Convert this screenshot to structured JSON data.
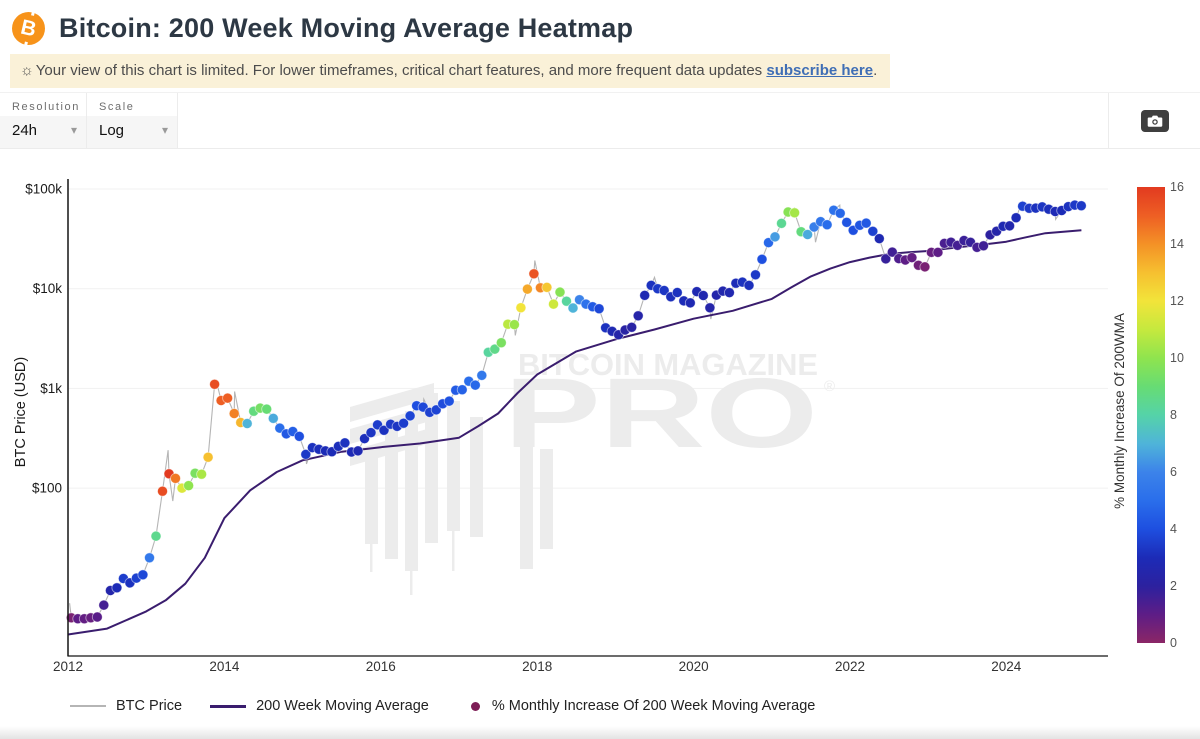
{
  "header": {
    "title": "Bitcoin: 200 Week Moving Average Heatmap"
  },
  "notice": {
    "icon": "☼",
    "text": "Your view of this chart is limited. For lower timeframes, critical chart features, and more frequent data updates ",
    "link_label": "subscribe here",
    "suffix": "."
  },
  "toolbar": {
    "resolution_label": "Resolution",
    "resolution_value": "24h",
    "scale_label": "Scale",
    "scale_value": "Log"
  },
  "watermark": {
    "line1": "BITCOIN MAGAZINE",
    "line2": "PRO",
    "reg": "®"
  },
  "legend": [
    {
      "type": "line",
      "color": "#b5b5b5",
      "label": "BTC Price"
    },
    {
      "type": "line",
      "color": "#3a1d6e",
      "label": "200 Week Moving Average"
    },
    {
      "type": "dot",
      "color": "#7d1e56",
      "label": "% Monthly Increase Of 200 Week Moving Average"
    }
  ],
  "chart_data": {
    "type": "scatter+line",
    "title": "Bitcoin: 200 Week Moving Average Heatmap",
    "ylabel": "BTC Price (USD)",
    "scale": "log",
    "grid": "horizontal-faint",
    "yticks": [
      {
        "label": "$100k",
        "value": 100000
      },
      {
        "label": "$10k",
        "value": 10000
      },
      {
        "label": "$1k",
        "value": 1000
      },
      {
        "label": "$100",
        "value": 100
      }
    ],
    "xticks": [
      2012,
      2014,
      2016,
      2018,
      2020,
      2022,
      2024
    ],
    "x_domain": [
      2012,
      2025.3
    ],
    "colorbar": {
      "label": "% Monthly Increase Of 200WMA",
      "ticks": [
        0,
        2,
        4,
        6,
        8,
        10,
        12,
        14,
        16
      ],
      "range": [
        0,
        16
      ],
      "stops": [
        [
          0,
          "#8b2666"
        ],
        [
          1,
          "#5e1d86"
        ],
        [
          2,
          "#2c219f"
        ],
        [
          3,
          "#1c2bb7"
        ],
        [
          4,
          "#1e4fe0"
        ],
        [
          5,
          "#2a6eeb"
        ],
        [
          6,
          "#3c83ea"
        ],
        [
          7,
          "#4fb4d9"
        ],
        [
          8,
          "#55d3a8"
        ],
        [
          9,
          "#67dc74"
        ],
        [
          10,
          "#8fe44e"
        ],
        [
          11,
          "#c5e93e"
        ],
        [
          12,
          "#f2e43a"
        ],
        [
          13,
          "#f6c030"
        ],
        [
          14,
          "#f49126"
        ],
        [
          15,
          "#ee5f24"
        ],
        [
          16,
          "#e23a20"
        ]
      ]
    },
    "monthly_start": 2012.0,
    "monthly_note": "each entry = [BTC price USD, % monthly increase of 200WMA], one per month from Jan 2012",
    "monthly": [
      [
        5.0,
        0.4
      ],
      [
        4.9,
        1.0
      ],
      [
        4.9,
        0.9
      ],
      [
        5.0,
        0.8
      ],
      [
        5.1,
        1.1
      ],
      [
        6.7,
        1.5
      ],
      [
        9.4,
        2.5
      ],
      [
        10.0,
        3.0
      ],
      [
        12.4,
        3.5
      ],
      [
        11.2,
        3.2
      ],
      [
        12.5,
        3.6
      ],
      [
        13.5,
        3.8
      ],
      [
        20,
        5.5
      ],
      [
        33,
        8.5
      ],
      [
        93,
        15.5
      ],
      [
        139,
        16.0
      ],
      [
        125,
        14.5
      ],
      [
        100,
        11.5
      ],
      [
        106,
        10.0
      ],
      [
        141,
        9.5
      ],
      [
        138,
        10.5
      ],
      [
        204,
        13.0
      ],
      [
        1100,
        15.5
      ],
      [
        757,
        15.0
      ],
      [
        800,
        15.0
      ],
      [
        560,
        14.3
      ],
      [
        455,
        13.2
      ],
      [
        445,
        7.0
      ],
      [
        590,
        8.8
      ],
      [
        635,
        9.4
      ],
      [
        620,
        9.0
      ],
      [
        500,
        6.8
      ],
      [
        400,
        5.0
      ],
      [
        350,
        4.3
      ],
      [
        370,
        4.5
      ],
      [
        330,
        4.0
      ],
      [
        218,
        3.4
      ],
      [
        255,
        3.2
      ],
      [
        245,
        3.1
      ],
      [
        236,
        3.0
      ],
      [
        232,
        3.0
      ],
      [
        262,
        3.1
      ],
      [
        284,
        3.2
      ],
      [
        230,
        2.9
      ],
      [
        236,
        2.8
      ],
      [
        314,
        3.1
      ],
      [
        360,
        3.3
      ],
      [
        430,
        3.5
      ],
      [
        380,
        3.2
      ],
      [
        437,
        3.4
      ],
      [
        416,
        3.3
      ],
      [
        448,
        3.5
      ],
      [
        530,
        3.7
      ],
      [
        670,
        4.0
      ],
      [
        650,
        3.8
      ],
      [
        575,
        3.6
      ],
      [
        608,
        3.7
      ],
      [
        700,
        3.9
      ],
      [
        745,
        4.1
      ],
      [
        960,
        4.4
      ],
      [
        970,
        4.6
      ],
      [
        1180,
        5.0
      ],
      [
        1080,
        4.8
      ],
      [
        1350,
        5.5
      ],
      [
        2300,
        8.2
      ],
      [
        2480,
        8.6
      ],
      [
        2870,
        9.5
      ],
      [
        4400,
        10.8
      ],
      [
        4360,
        10.2
      ],
      [
        6450,
        12.0
      ],
      [
        9900,
        13.5
      ],
      [
        14100,
        15.3
      ],
      [
        10200,
        14.2
      ],
      [
        10300,
        12.8
      ],
      [
        7000,
        11.2
      ],
      [
        9240,
        9.8
      ],
      [
        7500,
        8.2
      ],
      [
        6400,
        7.0
      ],
      [
        7750,
        6.0
      ],
      [
        7000,
        5.2
      ],
      [
        6600,
        4.4
      ],
      [
        6300,
        3.8
      ],
      [
        4050,
        3.2
      ],
      [
        3740,
        2.8
      ],
      [
        3460,
        2.4
      ],
      [
        3850,
        2.2
      ],
      [
        4100,
        2.2
      ],
      [
        5350,
        2.4
      ],
      [
        8560,
        2.8
      ],
      [
        10800,
        3.2
      ],
      [
        10000,
        3.4
      ],
      [
        9600,
        3.3
      ],
      [
        8300,
        3.1
      ],
      [
        9150,
        3.2
      ],
      [
        7550,
        3.0
      ],
      [
        7200,
        2.8
      ],
      [
        9350,
        2.8
      ],
      [
        8550,
        2.7
      ],
      [
        6440,
        2.4
      ],
      [
        8630,
        2.5
      ],
      [
        9450,
        2.6
      ],
      [
        9140,
        2.7
      ],
      [
        11350,
        3.0
      ],
      [
        11650,
        3.2
      ],
      [
        10780,
        3.1
      ],
      [
        13800,
        3.4
      ],
      [
        19700,
        4.0
      ],
      [
        29000,
        4.8
      ],
      [
        33100,
        6.5
      ],
      [
        45200,
        8.4
      ],
      [
        58800,
        9.8
      ],
      [
        57750,
        10.4
      ],
      [
        37300,
        8.8
      ],
      [
        35000,
        6.8
      ],
      [
        41600,
        5.8
      ],
      [
        47100,
        5.4
      ],
      [
        43800,
        5.0
      ],
      [
        61300,
        5.2
      ],
      [
        57000,
        4.8
      ],
      [
        46200,
        4.2
      ],
      [
        38500,
        4.0
      ],
      [
        43200,
        4.2
      ],
      [
        45500,
        4.3
      ],
      [
        37650,
        3.6
      ],
      [
        31800,
        2.8
      ],
      [
        19900,
        1.8
      ],
      [
        23300,
        1.6
      ],
      [
        20050,
        1.3
      ],
      [
        19400,
        1.0
      ],
      [
        20500,
        0.9
      ],
      [
        17150,
        0.6
      ],
      [
        16550,
        0.4
      ],
      [
        23100,
        0.8
      ],
      [
        23150,
        1.0
      ],
      [
        28500,
        1.4
      ],
      [
        29250,
        1.6
      ],
      [
        27200,
        1.5
      ],
      [
        30450,
        1.7
      ],
      [
        29230,
        1.8
      ],
      [
        25930,
        1.5
      ],
      [
        26950,
        1.6
      ],
      [
        34650,
        2.0
      ],
      [
        37700,
        2.4
      ],
      [
        42250,
        2.8
      ],
      [
        42600,
        2.6
      ],
      [
        51500,
        3.0
      ],
      [
        67200,
        3.6
      ],
      [
        64000,
        3.4
      ],
      [
        64300,
        3.2
      ],
      [
        66200,
        3.3
      ],
      [
        62700,
        3.1
      ],
      [
        59500,
        2.9
      ],
      [
        60800,
        3.0
      ],
      [
        66600,
        3.2
      ],
      [
        69000,
        3.4
      ],
      [
        68000,
        3.4
      ]
    ],
    "price_line_extra": [
      [
        2012.02,
        7.0
      ],
      [
        2013.28,
        240
      ],
      [
        2013.34,
        74
      ],
      [
        2013.9,
        1160
      ],
      [
        2014.13,
        930
      ],
      [
        2015.05,
        175
      ],
      [
        2016.55,
        780
      ],
      [
        2017.72,
        3400
      ],
      [
        2017.97,
        19200
      ],
      [
        2019.5,
        13000
      ],
      [
        2020.22,
        4950
      ],
      [
        2021.29,
        64400
      ],
      [
        2021.56,
        29300
      ],
      [
        2021.87,
        68900
      ],
      [
        2022.9,
        15700
      ],
      [
        2024.2,
        73500
      ],
      [
        2024.63,
        49500
      ]
    ],
    "wma_line": [
      [
        2012.0,
        3.4
      ],
      [
        2012.5,
        3.9
      ],
      [
        2013.0,
        5.8
      ],
      [
        2013.25,
        7.5
      ],
      [
        2013.5,
        11
      ],
      [
        2013.75,
        20
      ],
      [
        2014.0,
        50
      ],
      [
        2014.33,
        95
      ],
      [
        2014.67,
        145
      ],
      [
        2015.0,
        190
      ],
      [
        2015.5,
        232
      ],
      [
        2016.0,
        257
      ],
      [
        2016.5,
        280
      ],
      [
        2017.0,
        320
      ],
      [
        2017.25,
        420
      ],
      [
        2017.5,
        560
      ],
      [
        2017.75,
        900
      ],
      [
        2018.0,
        1380
      ],
      [
        2018.5,
        2350
      ],
      [
        2019.0,
        3100
      ],
      [
        2019.5,
        3900
      ],
      [
        2020.0,
        5000
      ],
      [
        2020.5,
        6000
      ],
      [
        2021.0,
        7900
      ],
      [
        2021.25,
        10300
      ],
      [
        2021.5,
        13300
      ],
      [
        2021.75,
        15900
      ],
      [
        2022.0,
        18500
      ],
      [
        2022.25,
        20500
      ],
      [
        2022.5,
        22300
      ],
      [
        2022.75,
        23200
      ],
      [
        2023.0,
        23900
      ],
      [
        2023.25,
        25300
      ],
      [
        2023.5,
        26600
      ],
      [
        2023.75,
        28000
      ],
      [
        2024.0,
        29600
      ],
      [
        2024.25,
        32800
      ],
      [
        2024.5,
        36000
      ],
      [
        2024.75,
        37400
      ],
      [
        2024.96,
        38500
      ]
    ]
  }
}
